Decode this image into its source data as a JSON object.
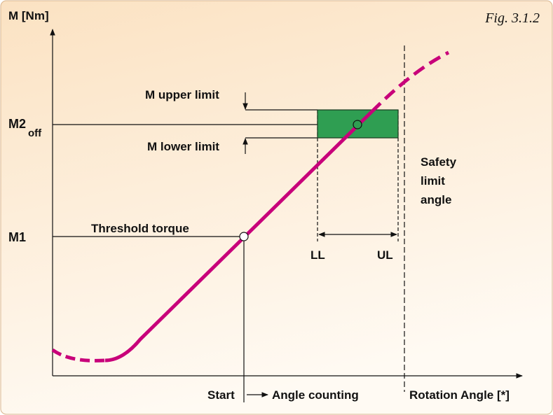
{
  "figure": "Fig. 3.1.2",
  "axes": {
    "y_label": "M [Nm]",
    "x_label": "Rotation Angle [*]"
  },
  "levels": {
    "m2_main": "M2",
    "m2_sub": "off",
    "m1": "M1"
  },
  "annotations": {
    "upper": "M upper limit",
    "lower": "M lower limit",
    "threshold": "Threshold torque",
    "ll": "LL",
    "ul": "UL",
    "safety": [
      "Safety",
      "limit",
      "angle"
    ],
    "start": "Start",
    "counting": "Angle counting"
  }
}
